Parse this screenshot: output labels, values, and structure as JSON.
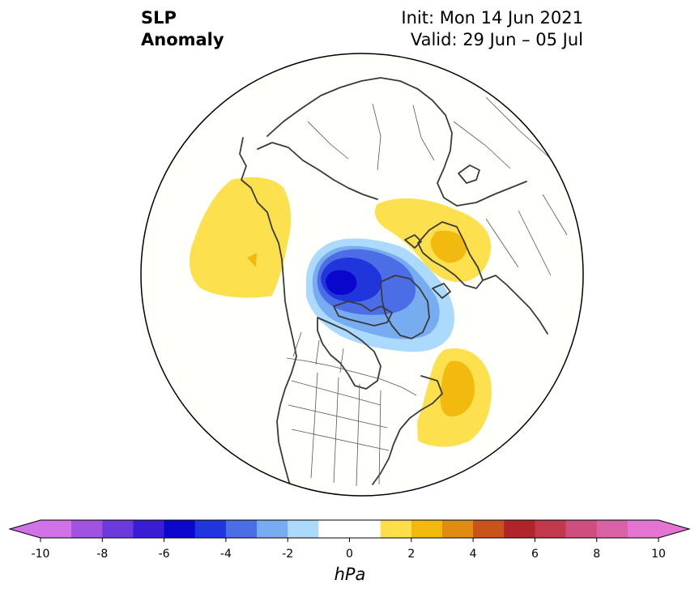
{
  "header": {
    "title_line1": "SLP",
    "title_line2": "Anomaly",
    "init": "Init: Mon 14 Jun 2021",
    "valid": "Valid: 29 Jun – 05 Jul"
  },
  "colorbar": {
    "unit": "hPa",
    "levels": [
      -10,
      -9,
      -8,
      -7,
      -6,
      -5,
      -4,
      -3,
      -2,
      -1,
      1,
      2,
      3,
      4,
      5,
      6,
      7,
      8,
      9,
      10
    ],
    "tick_labels": [
      "-10",
      "-8",
      "-6",
      "-4",
      "-2",
      "0",
      "2",
      "4",
      "6",
      "8",
      "10"
    ],
    "colors": [
      "#d173e6",
      "#a052e0",
      "#6c3adb",
      "#3a1ed4",
      "#0a06cc",
      "#2035dc",
      "#4b6de6",
      "#78acf0",
      "#acdafc",
      "#ffffff",
      "#fddf4b",
      "#f2b90e",
      "#e08c12",
      "#c8541a",
      "#b0242a",
      "#c4384c",
      "#cf4e7e",
      "#da61a6",
      "#e473d2"
    ],
    "extend_low_color": "#d173e6",
    "extend_high_color": "#e473d2"
  },
  "map": {
    "projection": "north-polar-stereographic",
    "variable": "sea level pressure anomaly",
    "features": [
      {
        "name": "greenland-arctic-low",
        "type": "negative",
        "min_level": -6
      },
      {
        "name": "eastern-pacific-high",
        "type": "positive",
        "max_level": 2
      },
      {
        "name": "northern-europe-high",
        "type": "positive",
        "max_level": 2
      },
      {
        "name": "western-atlantic-high",
        "type": "positive",
        "max_level": 2
      }
    ]
  }
}
